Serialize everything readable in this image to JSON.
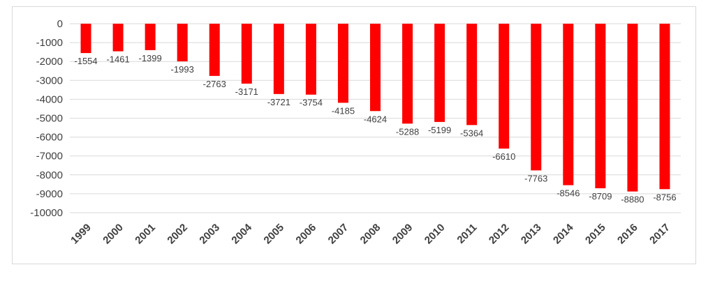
{
  "chart_data": {
    "type": "bar",
    "categories": [
      "1999",
      "2000",
      "2001",
      "2002",
      "2003",
      "2004",
      "2005",
      "2006",
      "2007",
      "2008",
      "2009",
      "2010",
      "2011",
      "2012",
      "2013",
      "2014",
      "2015",
      "2016",
      "2017"
    ],
    "values": [
      -1554,
      -1461,
      -1399,
      -1993,
      -2763,
      -3171,
      -3721,
      -3754,
      -4185,
      -4624,
      -5288,
      -5199,
      -5364,
      -6610,
      -7763,
      -8546,
      -8709,
      -8880,
      -8756
    ],
    "data_labels": [
      "-1554",
      "-1461",
      "-1399",
      "-1993",
      "-2763",
      "-3171",
      "-3721",
      "-3754",
      "-4185",
      "-4624",
      "-5288",
      "-5199",
      "-5364",
      "-6610",
      "-7763",
      "-8546",
      "-8709",
      "-8880",
      "-8756"
    ],
    "y_ticks": [
      "0",
      "-1000",
      "-2000",
      "-3000",
      "-4000",
      "-5000",
      "-6000",
      "-7000",
      "-8000",
      "-9000",
      "-10000"
    ],
    "ylim": [
      -10000,
      0
    ],
    "grid": true,
    "legend": "none",
    "bar_color": "#ff0000",
    "grid_color": "#d9d9d9",
    "text_color": "#404040"
  }
}
